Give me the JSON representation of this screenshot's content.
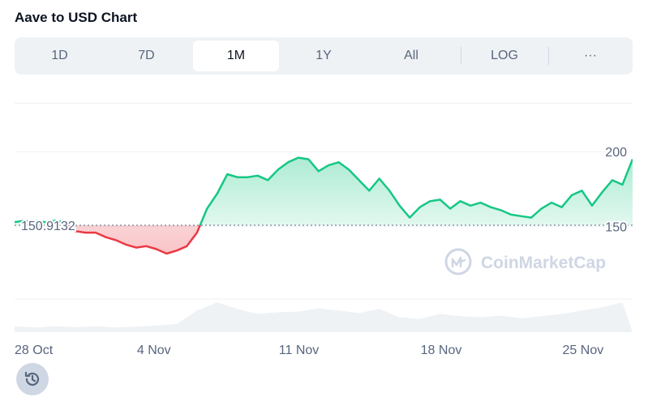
{
  "title": "Aave to USD Chart",
  "tabs": [
    {
      "label": "1D"
    },
    {
      "label": "7D"
    },
    {
      "label": "1M",
      "active": true
    },
    {
      "label": "1Y"
    },
    {
      "label": "All"
    },
    {
      "label": "LOG"
    },
    {
      "label": "···"
    }
  ],
  "watermark": "CoinMarketCap",
  "icons": {
    "history": "history-icon",
    "watermark_logo": "coinmarketcap-logo-icon"
  },
  "colors": {
    "up": "#16c784",
    "down": "#ea3943",
    "baseline": "#58667e",
    "text_secondary": "#58667e"
  },
  "chart_data": {
    "type": "line",
    "baseline": 150.9132,
    "baseline_label": "150.9132",
    "y_ticks": [
      {
        "value": 200,
        "label": "200"
      },
      {
        "value": 150,
        "label": "150"
      }
    ],
    "ylim": [
      105,
      232
    ],
    "xlim": [
      "2024-10-28",
      "2024-11-27"
    ],
    "x_ticks": [
      {
        "date": "2024-10-28",
        "label": "28 Oct"
      },
      {
        "date": "2024-11-04",
        "label": "4 Nov"
      },
      {
        "date": "2024-11-11",
        "label": "11 Nov"
      },
      {
        "date": "2024-11-18",
        "label": "18 Nov"
      },
      {
        "date": "2024-11-25",
        "label": "25 Nov"
      }
    ],
    "grid": true,
    "series": [
      {
        "points": [
          [
            "2024-10-28T00:00",
            153
          ],
          [
            "2024-10-28T12:00",
            154
          ],
          [
            "2024-10-29T00:00",
            154
          ],
          [
            "2024-10-29T12:00",
            153
          ],
          [
            "2024-10-30T00:00",
            154
          ],
          [
            "2024-10-30T12:00",
            153
          ],
          [
            "2024-10-31T00:00",
            147
          ],
          [
            "2024-10-31T12:00",
            146
          ],
          [
            "2024-11-01T00:00",
            146
          ],
          [
            "2024-11-01T12:00",
            143
          ],
          [
            "2024-11-02T00:00",
            141
          ],
          [
            "2024-11-02T12:00",
            138
          ],
          [
            "2024-11-03T00:00",
            136
          ],
          [
            "2024-11-03T12:00",
            137
          ],
          [
            "2024-11-04T00:00",
            135
          ],
          [
            "2024-11-04T12:00",
            132
          ],
          [
            "2024-11-05T00:00",
            134
          ],
          [
            "2024-11-05T12:00",
            137
          ],
          [
            "2024-11-06T00:00",
            146
          ],
          [
            "2024-11-06T12:00",
            162
          ],
          [
            "2024-11-07T00:00",
            172
          ],
          [
            "2024-11-07T12:00",
            185
          ],
          [
            "2024-11-08T00:00",
            183
          ],
          [
            "2024-11-08T12:00",
            183
          ],
          [
            "2024-11-09T00:00",
            184
          ],
          [
            "2024-11-09T12:00",
            181
          ],
          [
            "2024-11-10T00:00",
            188
          ],
          [
            "2024-11-10T12:00",
            193
          ],
          [
            "2024-11-11T00:00",
            196
          ],
          [
            "2024-11-11T12:00",
            195
          ],
          [
            "2024-11-12T00:00",
            187
          ],
          [
            "2024-11-12T12:00",
            191
          ],
          [
            "2024-11-13T00:00",
            193
          ],
          [
            "2024-11-13T12:00",
            188
          ],
          [
            "2024-11-14T00:00",
            181
          ],
          [
            "2024-11-14T12:00",
            174
          ],
          [
            "2024-11-15T00:00",
            182
          ],
          [
            "2024-11-15T12:00",
            174
          ],
          [
            "2024-11-16T00:00",
            164
          ],
          [
            "2024-11-16T12:00",
            156
          ],
          [
            "2024-11-17T00:00",
            163
          ],
          [
            "2024-11-17T12:00",
            167
          ],
          [
            "2024-11-18T00:00",
            168
          ],
          [
            "2024-11-18T12:00",
            162
          ],
          [
            "2024-11-19T00:00",
            167
          ],
          [
            "2024-11-19T12:00",
            164
          ],
          [
            "2024-11-20T00:00",
            166
          ],
          [
            "2024-11-20T12:00",
            163
          ],
          [
            "2024-11-21T00:00",
            161
          ],
          [
            "2024-11-21T12:00",
            158
          ],
          [
            "2024-11-22T00:00",
            157
          ],
          [
            "2024-11-22T12:00",
            156
          ],
          [
            "2024-11-23T00:00",
            162
          ],
          [
            "2024-11-23T12:00",
            166
          ],
          [
            "2024-11-24T00:00",
            163
          ],
          [
            "2024-11-24T12:00",
            171
          ],
          [
            "2024-11-25T00:00",
            174
          ],
          [
            "2024-11-25T12:00",
            164
          ],
          [
            "2024-11-26T00:00",
            173
          ],
          [
            "2024-11-26T12:00",
            181
          ],
          [
            "2024-11-27T00:00",
            178
          ],
          [
            "2024-11-27T12:00",
            195
          ]
        ]
      }
    ],
    "volume": {
      "ylim": [
        0,
        100
      ],
      "points": [
        [
          "2024-10-28T00:00",
          18
        ],
        [
          "2024-10-29T00:00",
          14
        ],
        [
          "2024-10-30T00:00",
          18
        ],
        [
          "2024-10-31T00:00",
          15
        ],
        [
          "2024-11-01T00:00",
          18
        ],
        [
          "2024-11-02T00:00",
          14
        ],
        [
          "2024-11-03T00:00",
          17
        ],
        [
          "2024-11-04T00:00",
          20
        ],
        [
          "2024-11-05T00:00",
          25
        ],
        [
          "2024-11-06T00:00",
          65
        ],
        [
          "2024-11-07T00:00",
          90
        ],
        [
          "2024-11-08T00:00",
          70
        ],
        [
          "2024-11-09T00:00",
          55
        ],
        [
          "2024-11-10T00:00",
          60
        ],
        [
          "2024-11-11T00:00",
          62
        ],
        [
          "2024-11-12T00:00",
          72
        ],
        [
          "2024-11-13T00:00",
          65
        ],
        [
          "2024-11-14T00:00",
          58
        ],
        [
          "2024-11-15T00:00",
          70
        ],
        [
          "2024-11-16T00:00",
          45
        ],
        [
          "2024-11-17T00:00",
          40
        ],
        [
          "2024-11-18T00:00",
          55
        ],
        [
          "2024-11-19T00:00",
          48
        ],
        [
          "2024-11-20T00:00",
          45
        ],
        [
          "2024-11-21T00:00",
          50
        ],
        [
          "2024-11-22T00:00",
          42
        ],
        [
          "2024-11-23T00:00",
          48
        ],
        [
          "2024-11-24T00:00",
          55
        ],
        [
          "2024-11-25T00:00",
          65
        ],
        [
          "2024-11-26T00:00",
          75
        ],
        [
          "2024-11-27T00:00",
          90
        ]
      ]
    }
  }
}
